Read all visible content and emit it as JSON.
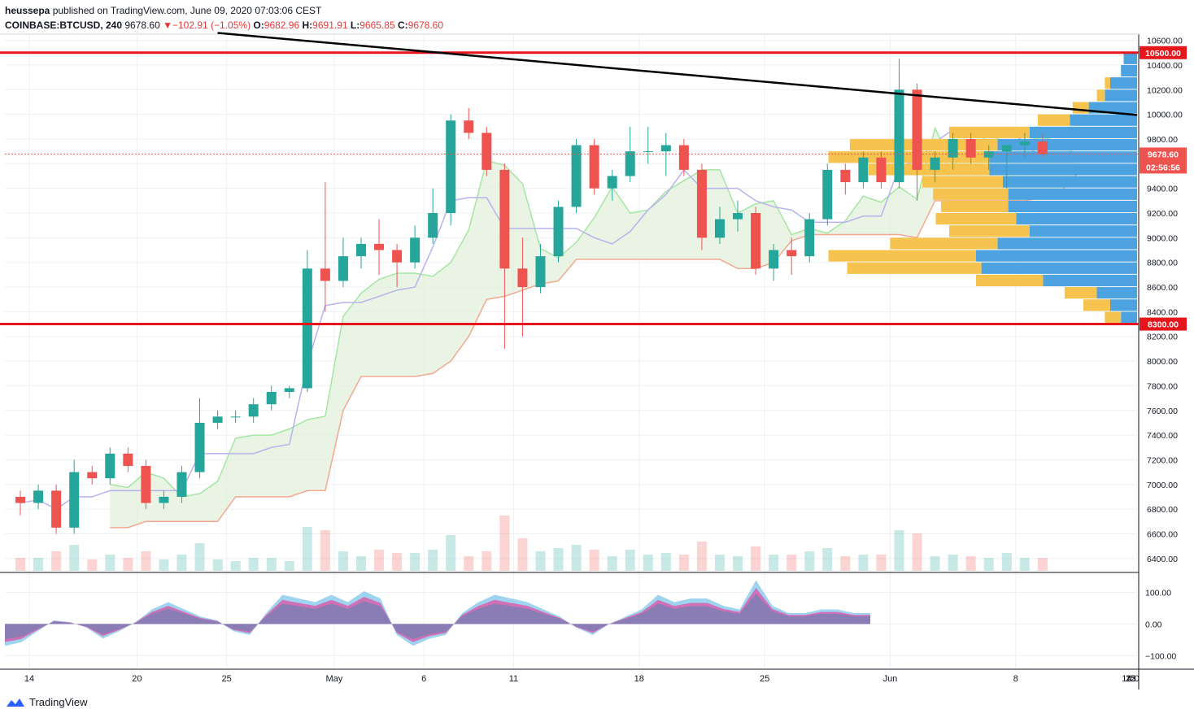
{
  "header": {
    "author": "heussepa",
    "published_text": " published on TradingView.com, June 09, 2020 07:03:06 CEST",
    "symbol": "COINBASE:BTCUSD, 240",
    "last": "9678.60",
    "change_arrow": "▼",
    "change": "−102.91 (−1.05%)",
    "o_label": "O:",
    "o_value": "9682.96",
    "h_label": "H:",
    "h_value": "9691.91",
    "l_label": "L:",
    "l_value": "9665.85",
    "c_label": "C:",
    "c_value": "9678.60"
  },
  "footer": {
    "brand": "TradingView",
    "icon": "tradingview-logo-icon"
  },
  "colors": {
    "up": "#26a69a",
    "down": "#ef5350",
    "hline": "#e5171d",
    "trend": "#000000",
    "ichimoku_fill": "#dff0d8",
    "kijun": "#b8b3ee",
    "senkou_b": "#f3a88f",
    "senkou_a": "#a5e6a3",
    "vp_up": "#4ca3df",
    "vp_down": "#f6c34e",
    "osc_a": "#86c9ec",
    "osc_b": "#e04fa3",
    "osc_c": "#7e7fb5"
  },
  "chart_data": [
    {
      "type": "candlestick",
      "title": "COINBASE:BTCUSD, 240",
      "x_ticks": [
        "14",
        "20",
        "25",
        "May",
        "6",
        "11",
        "18",
        "25",
        "Jun",
        "8",
        "15",
        "22",
        "14:0"
      ],
      "y_ticks": [
        6400,
        6600,
        6800,
        7000,
        7200,
        7400,
        7600,
        7800,
        8000,
        8200,
        8400,
        8600,
        8800,
        9000,
        9200,
        9400,
        9600,
        9800,
        10000,
        10200,
        10400,
        10600
      ],
      "y_tick_labels": [
        "6400.00",
        "6600.00",
        "6800.00",
        "7000.00",
        "7200.00",
        "7400.00",
        "7600.00",
        "7800.00",
        "8000.00",
        "8200.00",
        "8400.00",
        "8600.00",
        "8800.00",
        "9000.00",
        "9200.00",
        "9400.00",
        "9600.00",
        "9800.00",
        "10000.00",
        "10200.00",
        "10400.00",
        "10600.00"
      ],
      "ylim": [
        6300,
        10650
      ],
      "price_series_daily_approx": [
        {
          "date": "Apr 13",
          "o": 6900,
          "h": 6950,
          "l": 6750,
          "c": 6850
        },
        {
          "date": "Apr 14",
          "o": 6850,
          "h": 7000,
          "l": 6800,
          "c": 6950
        },
        {
          "date": "Apr 15",
          "o": 6950,
          "h": 7000,
          "l": 6600,
          "c": 6650
        },
        {
          "date": "Apr 16",
          "o": 6650,
          "h": 7200,
          "l": 6600,
          "c": 7100
        },
        {
          "date": "Apr 17",
          "o": 7100,
          "h": 7150,
          "l": 7000,
          "c": 7050
        },
        {
          "date": "Apr 18",
          "o": 7050,
          "h": 7300,
          "l": 7000,
          "c": 7250
        },
        {
          "date": "Apr 19",
          "o": 7250,
          "h": 7300,
          "l": 7100,
          "c": 7150
        },
        {
          "date": "Apr 20",
          "o": 7150,
          "h": 7200,
          "l": 6800,
          "c": 6850
        },
        {
          "date": "Apr 21",
          "o": 6850,
          "h": 6950,
          "l": 6800,
          "c": 6900
        },
        {
          "date": "Apr 22",
          "o": 6900,
          "h": 7150,
          "l": 6850,
          "c": 7100
        },
        {
          "date": "Apr 23",
          "o": 7100,
          "h": 7700,
          "l": 7050,
          "c": 7500
        },
        {
          "date": "Apr 24",
          "o": 7500,
          "h": 7600,
          "l": 7450,
          "c": 7550
        },
        {
          "date": "Apr 25",
          "o": 7550,
          "h": 7600,
          "l": 7500,
          "c": 7550
        },
        {
          "date": "Apr 26",
          "o": 7550,
          "h": 7700,
          "l": 7500,
          "c": 7650
        },
        {
          "date": "Apr 27",
          "o": 7650,
          "h": 7800,
          "l": 7600,
          "c": 7750
        },
        {
          "date": "Apr 28",
          "o": 7750,
          "h": 7800,
          "l": 7700,
          "c": 7780
        },
        {
          "date": "Apr 29",
          "o": 7780,
          "h": 8900,
          "l": 7750,
          "c": 8750
        },
        {
          "date": "Apr 30",
          "o": 8750,
          "h": 9450,
          "l": 8400,
          "c": 8650
        },
        {
          "date": "May 1",
          "o": 8650,
          "h": 9000,
          "l": 8600,
          "c": 8850
        },
        {
          "date": "May 2",
          "o": 8850,
          "h": 9000,
          "l": 8750,
          "c": 8950
        },
        {
          "date": "May 3",
          "o": 8950,
          "h": 9150,
          "l": 8700,
          "c": 8900
        },
        {
          "date": "May 4",
          "o": 8900,
          "h": 8950,
          "l": 8600,
          "c": 8800
        },
        {
          "date": "May 5",
          "o": 8800,
          "h": 9100,
          "l": 8750,
          "c": 9000
        },
        {
          "date": "May 6",
          "o": 9000,
          "h": 9400,
          "l": 8950,
          "c": 9200
        },
        {
          "date": "May 7",
          "o": 9200,
          "h": 10000,
          "l": 9100,
          "c": 9950
        },
        {
          "date": "May 8",
          "o": 9950,
          "h": 10050,
          "l": 9800,
          "c": 9850
        },
        {
          "date": "May 9",
          "o": 9850,
          "h": 9900,
          "l": 9500,
          "c": 9550
        },
        {
          "date": "May 10",
          "o": 9550,
          "h": 9600,
          "l": 8100,
          "c": 8750
        },
        {
          "date": "May 11",
          "o": 8750,
          "h": 9000,
          "l": 8200,
          "c": 8600
        },
        {
          "date": "May 12",
          "o": 8600,
          "h": 8950,
          "l": 8550,
          "c": 8850
        },
        {
          "date": "May 13",
          "o": 8850,
          "h": 9300,
          "l": 8800,
          "c": 9250
        },
        {
          "date": "May 14",
          "o": 9250,
          "h": 9800,
          "l": 9200,
          "c": 9750
        },
        {
          "date": "May 15",
          "o": 9750,
          "h": 9800,
          "l": 9350,
          "c": 9400
        },
        {
          "date": "May 16",
          "o": 9400,
          "h": 9550,
          "l": 9300,
          "c": 9500
        },
        {
          "date": "May 17",
          "o": 9500,
          "h": 9900,
          "l": 9450,
          "c": 9700
        },
        {
          "date": "May 18",
          "o": 9700,
          "h": 9900,
          "l": 9600,
          "c": 9700
        },
        {
          "date": "May 19",
          "o": 9700,
          "h": 9850,
          "l": 9500,
          "c": 9750
        },
        {
          "date": "May 20",
          "o": 9750,
          "h": 9800,
          "l": 9500,
          "c": 9550
        },
        {
          "date": "May 21",
          "o": 9550,
          "h": 9600,
          "l": 8900,
          "c": 9000
        },
        {
          "date": "May 22",
          "o": 9000,
          "h": 9250,
          "l": 8950,
          "c": 9150
        },
        {
          "date": "May 23",
          "o": 9150,
          "h": 9300,
          "l": 9050,
          "c": 9200
        },
        {
          "date": "May 24",
          "o": 9200,
          "h": 9250,
          "l": 8700,
          "c": 8750
        },
        {
          "date": "May 25",
          "o": 8750,
          "h": 8950,
          "l": 8650,
          "c": 8900
        },
        {
          "date": "May 26",
          "o": 8900,
          "h": 9000,
          "l": 8700,
          "c": 8850
        },
        {
          "date": "May 27",
          "o": 8850,
          "h": 9200,
          "l": 8800,
          "c": 9150
        },
        {
          "date": "May 28",
          "o": 9150,
          "h": 9600,
          "l": 9100,
          "c": 9550
        },
        {
          "date": "May 29",
          "o": 9550,
          "h": 9600,
          "l": 9350,
          "c": 9450
        },
        {
          "date": "May 30",
          "o": 9450,
          "h": 9700,
          "l": 9400,
          "c": 9650
        },
        {
          "date": "May 31",
          "o": 9650,
          "h": 9700,
          "l": 9400,
          "c": 9450
        },
        {
          "date": "Jun 1",
          "o": 9450,
          "h": 10450,
          "l": 9400,
          "c": 10200
        },
        {
          "date": "Jun 2",
          "o": 10200,
          "h": 10250,
          "l": 9300,
          "c": 9550
        },
        {
          "date": "Jun 3",
          "o": 9550,
          "h": 9700,
          "l": 9450,
          "c": 9650
        },
        {
          "date": "Jun 4",
          "o": 9650,
          "h": 9850,
          "l": 9550,
          "c": 9800
        },
        {
          "date": "Jun 5",
          "o": 9800,
          "h": 9850,
          "l": 9600,
          "c": 9650
        },
        {
          "date": "Jun 6",
          "o": 9650,
          "h": 9750,
          "l": 9550,
          "c": 9700
        },
        {
          "date": "Jun 7",
          "o": 9700,
          "h": 9750,
          "l": 9400,
          "c": 9750
        },
        {
          "date": "Jun 8",
          "o": 9750,
          "h": 9850,
          "l": 9650,
          "c": 9780
        },
        {
          "date": "Jun 9",
          "o": 9780,
          "h": 9850,
          "l": 9650,
          "c": 9678.6
        }
      ],
      "horizontal_levels": [
        {
          "value": 10500,
          "label": "10500.00"
        },
        {
          "value": 8300,
          "label": "8300.00"
        }
      ],
      "trend_line": {
        "start": {
          "date": "Apr 24",
          "price": 10660
        },
        "end": {
          "date": "Jun 22",
          "price": 9995
        }
      },
      "current_price": {
        "value": 9678.6,
        "label": "9678.60",
        "countdown": "02:56:56"
      },
      "volume_profile_rows": [
        {
          "price": 10450,
          "up": 0.05,
          "down": 0.0
        },
        {
          "price": 10350,
          "up": 0.06,
          "down": 0.0
        },
        {
          "price": 10250,
          "up": 0.1,
          "down": 0.02
        },
        {
          "price": 10150,
          "up": 0.12,
          "down": 0.03
        },
        {
          "price": 10050,
          "up": 0.18,
          "down": 0.06
        },
        {
          "price": 9950,
          "up": 0.25,
          "down": 0.12
        },
        {
          "price": 9850,
          "up": 0.4,
          "down": 0.3
        },
        {
          "price": 9750,
          "up": 0.52,
          "down": 0.55
        },
        {
          "price": 9650,
          "up": 0.55,
          "down": 0.6
        },
        {
          "price": 9550,
          "up": 0.55,
          "down": 0.45
        },
        {
          "price": 9450,
          "up": 0.5,
          "down": 0.3
        },
        {
          "price": 9350,
          "up": 0.48,
          "down": 0.28
        },
        {
          "price": 9250,
          "up": 0.48,
          "down": 0.25
        },
        {
          "price": 9150,
          "up": 0.45,
          "down": 0.3
        },
        {
          "price": 9050,
          "up": 0.4,
          "down": 0.3
        },
        {
          "price": 8950,
          "up": 0.52,
          "down": 0.4
        },
        {
          "price": 8850,
          "up": 0.6,
          "down": 0.55
        },
        {
          "price": 8750,
          "up": 0.58,
          "down": 0.5
        },
        {
          "price": 8650,
          "up": 0.35,
          "down": 0.25
        },
        {
          "price": 8550,
          "up": 0.15,
          "down": 0.12
        },
        {
          "price": 8450,
          "up": 0.1,
          "down": 0.1
        },
        {
          "price": 8350,
          "up": 0.06,
          "down": 0.06
        }
      ],
      "ichimoku_visible": true,
      "volume_bars_visible": true
    },
    {
      "type": "area",
      "title": "",
      "y_ticks": [
        100,
        0,
        -100
      ],
      "y_tick_labels": [
        "100.00",
        "0.00",
        "−100.00"
      ],
      "ylim": [
        -140,
        160
      ],
      "series": [
        {
          "values": [
            -60,
            -50,
            -20,
            10,
            5,
            -10,
            -40,
            -20,
            5,
            40,
            60,
            40,
            20,
            10,
            -20,
            -30,
            30,
            80,
            70,
            60,
            80,
            60,
            90,
            70,
            -30,
            -60,
            -40,
            -30,
            30,
            60,
            80,
            70,
            60,
            40,
            20,
            -10,
            -30,
            0,
            20,
            40,
            80,
            60,
            70,
            70,
            50,
            40,
            120,
            50,
            30,
            30,
            40,
            40,
            30,
            30
          ]
        }
      ],
      "grid": true
    }
  ]
}
